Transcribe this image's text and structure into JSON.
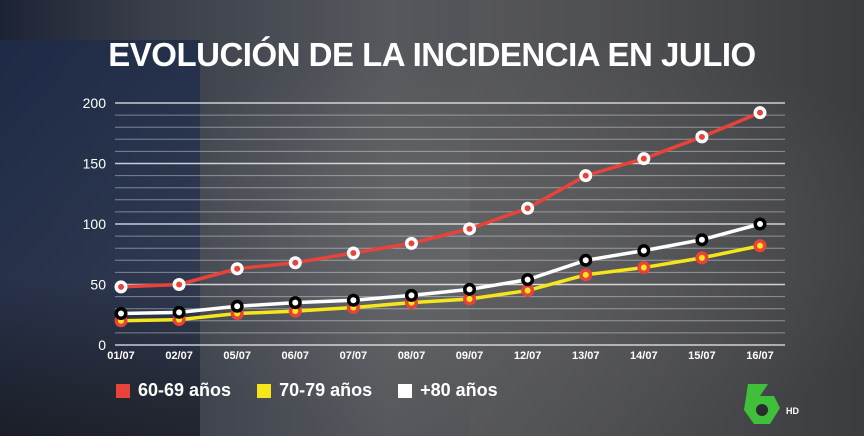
{
  "chart_data": {
    "type": "line",
    "title": "EVOLUCIÓN DE LA INCIDENCIA EN JULIO",
    "xlabel": "",
    "ylabel": "",
    "ylim": [
      0,
      200
    ],
    "yticks": [
      "0",
      "50",
      "100",
      "150",
      "200"
    ],
    "grid": true,
    "legend_position": "bottom-left",
    "categories": [
      "01/07",
      "02/07",
      "05/07",
      "06/07",
      "07/07",
      "08/07",
      "09/07",
      "12/07",
      "13/07",
      "14/07",
      "15/07",
      "16/07"
    ],
    "series": [
      {
        "name": "60-69 años",
        "color": "#e8433a",
        "values": [
          48,
          50,
          63,
          68,
          76,
          84,
          96,
          113,
          140,
          154,
          172,
          192
        ]
      },
      {
        "name": "70-79 años",
        "color": "#f5e61c",
        "values": [
          20,
          21,
          26,
          28,
          31,
          35,
          38,
          45,
          58,
          64,
          72,
          82
        ]
      },
      {
        "name": "+80 años",
        "color": "#ffffff",
        "values": [
          26,
          27,
          32,
          35,
          37,
          41,
          46,
          54,
          70,
          78,
          87,
          100
        ]
      }
    ]
  },
  "logo": {
    "text": "6",
    "badge": "HD",
    "color": "#3fbf3a"
  }
}
